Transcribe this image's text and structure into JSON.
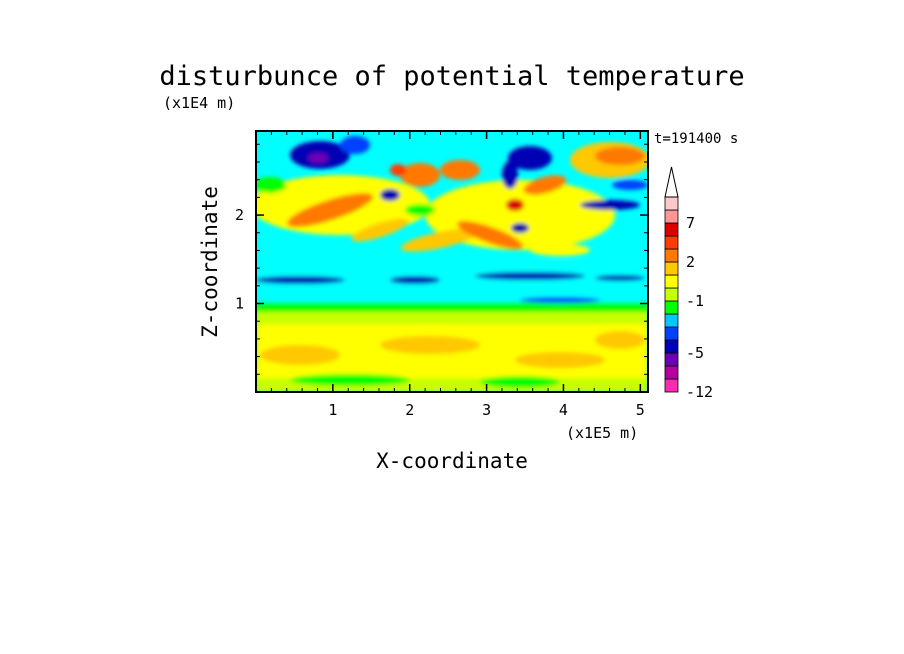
{
  "chart_data": {
    "type": "heatmap",
    "title": "disturbunce of potential temperature",
    "xlabel": "X-coordinate",
    "ylabel": "Z-coordinate",
    "x_unit": "(x1E5 m)",
    "y_unit": "(x1E4 m)",
    "time_label": "t=191400 s",
    "xlim": [
      0,
      5.1
    ],
    "ylim": [
      0,
      2.95
    ],
    "x_ticks": [
      "1",
      "2",
      "3",
      "4",
      "5"
    ],
    "y_ticks": [
      "1",
      "2"
    ],
    "colorbar": {
      "levels": [
        -12,
        -9,
        -7,
        -5,
        -4,
        -3,
        -2,
        -1,
        0,
        1,
        2,
        3,
        5,
        7,
        9,
        11
      ],
      "tick_labels": [
        "7",
        "2",
        "-1",
        "-5",
        "-12"
      ],
      "colors": [
        "#ff2ab4",
        "#b4009c",
        "#6e00b4",
        "#0000b4",
        "#0040ff",
        "#00c8ff",
        "#00ff00",
        "#c8ff00",
        "#ffff00",
        "#ffc800",
        "#ff7800",
        "#ff3c00",
        "#dc0000",
        "#ff9696",
        "#ffc8c8"
      ],
      "extend": "max"
    },
    "grid": false,
    "legend": "colorbar right"
  }
}
